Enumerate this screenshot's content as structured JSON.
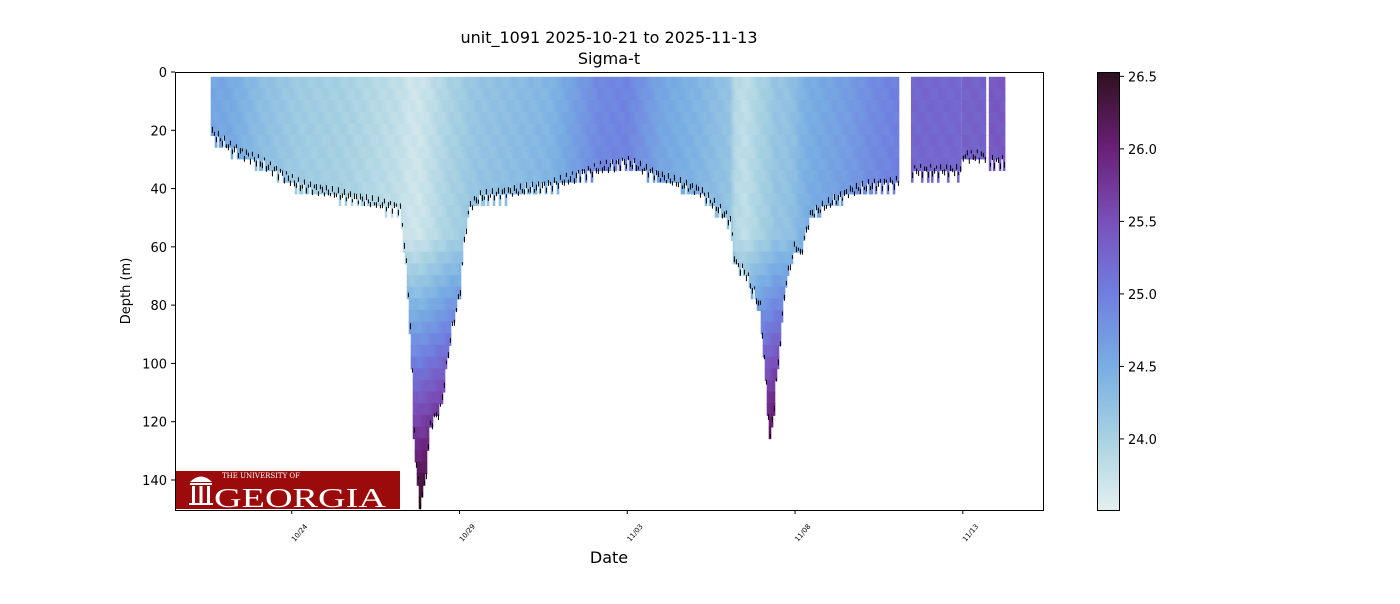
{
  "chart_data": {
    "type": "scatter",
    "title": "unit_1091 2025-10-21 to 2025-11-13",
    "subtitle": "Sigma-t",
    "xlabel": "Date",
    "ylabel": "Depth (m)",
    "x_unit": "days since 2025-10-21 00:00",
    "xlim": [
      -0.48,
      25.39
    ],
    "ylim": [
      150.3,
      0
    ],
    "y_inverted": true,
    "x_ticks": [
      {
        "day": 3,
        "label": "10/24"
      },
      {
        "day": 8,
        "label": "10/29"
      },
      {
        "day": 13,
        "label": "11/03"
      },
      {
        "day": 18,
        "label": "11/08"
      },
      {
        "day": 23,
        "label": "11/13"
      }
    ],
    "y_ticks": [
      0,
      20,
      40,
      60,
      80,
      100,
      120,
      140
    ],
    "colorbar": {
      "label": "",
      "range": [
        23.51,
        26.53
      ],
      "ticks": [
        "24.0",
        "24.5",
        "25.0",
        "25.5",
        "26.0",
        "26.5"
      ],
      "stops": [
        [
          23.51,
          "#e4f0f0"
        ],
        [
          24.0,
          "#a8d2e2"
        ],
        [
          24.5,
          "#78aee3"
        ],
        [
          25.0,
          "#6f7fe0"
        ],
        [
          25.5,
          "#7a50bb"
        ],
        [
          26.0,
          "#6a2078"
        ],
        [
          26.53,
          "#30101f"
        ]
      ]
    },
    "profiles_note": "max depth (m) and surface sigma-t along time",
    "profiles": [
      [
        0.62,
        20,
        24.6
      ],
      [
        1.16,
        25,
        24.55
      ],
      [
        2.05,
        30,
        24.3
      ],
      [
        3.24,
        38,
        24.1
      ],
      [
        4.73,
        42,
        24.0
      ],
      [
        6.22,
        46,
        23.8
      ],
      [
        6.37,
        60,
        23.75
      ],
      [
        6.52,
        85,
        23.7
      ],
      [
        6.67,
        130,
        23.7
      ],
      [
        6.82,
        147,
        23.7
      ],
      [
        6.97,
        140,
        23.75
      ],
      [
        7.12,
        120,
        23.8
      ],
      [
        7.42,
        115,
        23.9
      ],
      [
        7.72,
        90,
        24.0
      ],
      [
        8.0,
        75,
        24.05
      ],
      [
        8.15,
        55,
        24.1
      ],
      [
        8.3,
        45,
        24.15
      ],
      [
        8.6,
        42,
        24.2
      ],
      [
        10.69,
        38,
        24.4
      ],
      [
        12.18,
        32,
        24.9
      ],
      [
        13.0,
        30,
        24.95
      ],
      [
        13.97,
        35,
        24.6
      ],
      [
        15.16,
        40,
        24.4
      ],
      [
        16.06,
        50,
        24.2
      ],
      [
        16.21,
        65,
        23.9
      ],
      [
        16.51,
        68,
        23.8
      ],
      [
        16.96,
        80,
        24.0
      ],
      [
        17.25,
        125,
        24.1
      ],
      [
        17.4,
        110,
        24.2
      ],
      [
        17.7,
        72,
        24.2
      ],
      [
        18.0,
        58,
        24.3
      ],
      [
        18.15,
        62,
        24.4
      ],
      [
        18.45,
        48,
        24.5
      ],
      [
        19.64,
        40,
        24.7
      ],
      [
        20.24,
        38,
        24.85
      ],
      [
        21.07,
        37,
        25.0
      ]
    ],
    "segments": [
      {
        "start": 21.49,
        "end": 22.93,
        "depth": 33,
        "sigma": 25.25
      },
      {
        "start": 23.0,
        "end": 23.66,
        "depth": 28,
        "sigma": 25.3
      },
      {
        "start": 23.81,
        "end": 24.26,
        "depth": 30,
        "sigma": 25.4
      }
    ]
  },
  "logo": {
    "line1": "THE UNIVERSITY OF",
    "line2": "GEORGIA"
  }
}
